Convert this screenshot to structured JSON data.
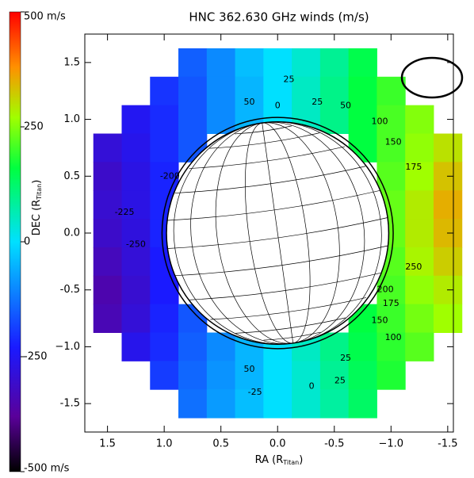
{
  "chart_data": {
    "type": "heatmap",
    "title": "HNC 362.630 GHz winds (m/s)",
    "xlabel": [
      "RA (R",
      "Titan",
      ")"
    ],
    "ylabel": [
      "DEC (R",
      "Titan",
      ")"
    ],
    "x": [
      1.5,
      1.25,
      1.0,
      0.75,
      0.5,
      0.25,
      0.0,
      -0.25,
      -0.5,
      -0.75,
      -1.0,
      -1.25,
      -1.5
    ],
    "y": [
      1.5,
      1.25,
      1.0,
      0.75,
      0.5,
      0.25,
      0.0,
      -0.25,
      -0.5,
      -0.75,
      -1.0,
      -1.25,
      -1.5
    ],
    "z": [
      [
        null,
        null,
        null,
        -150,
        -100,
        -40,
        0,
        40,
        90,
        150,
        null,
        null,
        null
      ],
      [
        null,
        null,
        -200,
        -160,
        -100,
        -50,
        0,
        50,
        100,
        160,
        200,
        null,
        null
      ],
      [
        null,
        -250,
        -210,
        -160,
        -100,
        -50,
        0,
        50,
        100,
        160,
        210,
        250,
        null
      ],
      [
        -290,
        -260,
        -210,
        -160,
        null,
        null,
        null,
        null,
        null,
        160,
        210,
        260,
        300
      ],
      [
        -310,
        -270,
        -220,
        null,
        null,
        null,
        null,
        null,
        null,
        null,
        220,
        270,
        330
      ],
      [
        -300,
        -270,
        -220,
        null,
        null,
        null,
        null,
        null,
        null,
        null,
        230,
        290,
        350
      ],
      [
        -310,
        -280,
        -220,
        null,
        null,
        null,
        null,
        null,
        null,
        null,
        230,
        290,
        340
      ],
      [
        -330,
        -290,
        -230,
        null,
        null,
        null,
        null,
        null,
        null,
        null,
        220,
        280,
        320
      ],
      [
        -350,
        -300,
        -230,
        null,
        null,
        null,
        null,
        null,
        null,
        null,
        210,
        260,
        290
      ],
      [
        -340,
        -290,
        -220,
        -160,
        null,
        null,
        null,
        null,
        null,
        160,
        200,
        240,
        270
      ],
      [
        null,
        -260,
        -210,
        -150,
        -100,
        -50,
        0,
        50,
        100,
        150,
        190,
        220,
        null
      ],
      [
        null,
        null,
        -190,
        -140,
        -90,
        -50,
        0,
        40,
        90,
        140,
        180,
        null,
        null
      ],
      [
        null,
        null,
        null,
        -130,
        -80,
        -40,
        0,
        40,
        80,
        130,
        null,
        null,
        null
      ]
    ],
    "xlim": [
      1.7,
      -1.55
    ],
    "ylim": [
      -1.75,
      1.75
    ],
    "xticks": [
      1.5,
      {
        "value": 1.0,
        "label": "1.0"
      },
      0.5,
      {
        "value": 0.0,
        "label": "0.0"
      },
      -0.5,
      {
        "value": -1.0,
        "label": "−1.0"
      },
      -1.5
    ],
    "yticks": [
      1.5,
      {
        "value": 1.0,
        "label": "1.0"
      },
      0.5,
      {
        "value": 0.0,
        "label": "0.0"
      },
      -0.5,
      {
        "value": -1.0,
        "label": "−1.0"
      },
      -1.5
    ],
    "zlim": [
      -500,
      500
    ],
    "zticks": [
      {
        "value": 500,
        "label": "500 m/s"
      },
      250,
      0,
      -250,
      {
        "value": -500,
        "label": "-500 m/s"
      }
    ],
    "contour_labels": [
      25,
      50,
      0,
      25,
      50,
      100,
      150,
      175,
      250,
      200,
      175,
      150,
      100,
      -225,
      -250,
      -200,
      50,
      25,
      -25,
      0,
      25
    ]
  }
}
